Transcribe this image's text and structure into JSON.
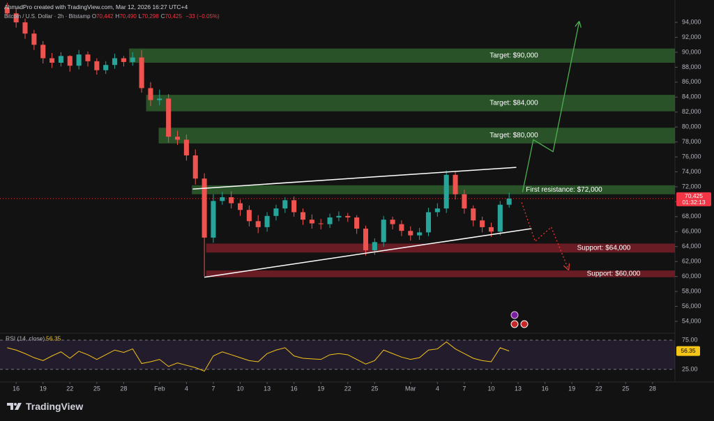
{
  "header": {
    "attribution": "AhmadPro created with TradingView.com, Mar 12, 2026 16:27 UTC+4",
    "symbol": "Bitcoin / U.S. Dollar · 2h · Bitstamp",
    "ohlc": [
      {
        "key": "O",
        "value": "70,442"
      },
      {
        "key": "H",
        "value": "70,490"
      },
      {
        "key": "L",
        "value": "70,298"
      },
      {
        "key": "C",
        "value": "70,425"
      }
    ],
    "change": "−33 (−0.05%)"
  },
  "chart_data": [
    {
      "type": "candlestick",
      "x": [
        15,
        16,
        17,
        18,
        19,
        20,
        21,
        22,
        23,
        24,
        25,
        26,
        27,
        28,
        29,
        30,
        31,
        32,
        33,
        34,
        35,
        36,
        37,
        38,
        39,
        40,
        41,
        42,
        43,
        44,
        45,
        46,
        47,
        48,
        49,
        50,
        51,
        52,
        53,
        54,
        55,
        56,
        57,
        58,
        59,
        60,
        61,
        62,
        63,
        64,
        65,
        66,
        67,
        68,
        69,
        70,
        71
      ],
      "open": [
        96000,
        95200,
        94000,
        92500,
        91000,
        89200,
        88600,
        89500,
        88200,
        89700,
        88800,
        87600,
        88300,
        89200,
        88700,
        89300,
        85200,
        83600,
        83800,
        78700,
        78300,
        76200,
        73100,
        65200,
        70100,
        70600,
        69800,
        68900,
        67400,
        66600,
        68100,
        69100,
        70200,
        68600,
        67600,
        67100,
        67000,
        67900,
        68100,
        67900,
        66400,
        63500,
        64600,
        67600,
        67000,
        66100,
        65500,
        65900,
        68600,
        69100,
        73600,
        71000,
        69100,
        67500,
        66600,
        66000,
        69600
      ],
      "high": [
        96600,
        95900,
        94500,
        93000,
        91500,
        89900,
        90000,
        89600,
        90300,
        90100,
        89200,
        88800,
        89800,
        89500,
        90000,
        90300,
        86000,
        85000,
        84400,
        79500,
        79000,
        77000,
        73800,
        71000,
        71300,
        71400,
        70300,
        69500,
        68200,
        68600,
        69600,
        70600,
        70700,
        69100,
        68300,
        67700,
        68400,
        68700,
        68500,
        68200,
        66800,
        65100,
        68100,
        68000,
        67500,
        66700,
        66500,
        69200,
        69800,
        74200,
        74000,
        71600,
        69500,
        68000,
        67200,
        70100,
        71200
      ],
      "low": [
        94600,
        93300,
        91800,
        90300,
        88500,
        87900,
        88100,
        87400,
        87700,
        88100,
        87000,
        87100,
        87800,
        88100,
        88200,
        84600,
        82800,
        82900,
        77900,
        77600,
        75500,
        72300,
        60000,
        64500,
        69600,
        69100,
        68100,
        66700,
        65800,
        66000,
        67500,
        68500,
        68000,
        66900,
        66400,
        66300,
        66500,
        67400,
        67300,
        65700,
        62800,
        62900,
        64000,
        66300,
        65400,
        64800,
        64900,
        65400,
        68000,
        68500,
        70300,
        68400,
        66700,
        65900,
        65300,
        65500,
        69200
      ],
      "close": [
        95200,
        94000,
        92500,
        91000,
        89200,
        88600,
        89500,
        88200,
        89700,
        88800,
        87600,
        88300,
        89200,
        88700,
        89300,
        85200,
        83600,
        83800,
        78700,
        78300,
        76200,
        73100,
        65200,
        70100,
        70600,
        69800,
        68900,
        67400,
        66600,
        68100,
        69100,
        70200,
        68600,
        67600,
        67100,
        67000,
        67900,
        68100,
        67900,
        66400,
        63500,
        64600,
        67600,
        67000,
        66100,
        65500,
        65900,
        68600,
        69100,
        73600,
        71000,
        69100,
        67500,
        66600,
        66000,
        69600,
        70425
      ],
      "colors": {
        "up": "#26a69a",
        "down": "#ef5350"
      },
      "xlim": [
        14.2,
        89.5
      ],
      "xticks": [
        16,
        19,
        22,
        25,
        28,
        {
          "value": 32,
          "label": "Feb"
        },
        {
          "value": 35,
          "label": "4"
        },
        {
          "value": 38,
          "label": "7"
        },
        {
          "value": 41,
          "label": "10"
        },
        {
          "value": 44,
          "label": "13"
        },
        {
          "value": 47,
          "label": "16"
        },
        {
          "value": 50,
          "label": "19"
        },
        {
          "value": 53,
          "label": "22"
        },
        {
          "value": 56,
          "label": "25"
        },
        {
          "value": 60,
          "label": "Mar"
        },
        {
          "value": 63,
          "label": "4"
        },
        {
          "value": 66,
          "label": "7"
        },
        {
          "value": 69,
          "label": "10"
        },
        {
          "value": 72,
          "label": "13"
        },
        {
          "value": 75,
          "label": "16"
        },
        {
          "value": 78,
          "label": "19"
        },
        {
          "value": 81,
          "label": "22"
        },
        {
          "value": 84,
          "label": "25"
        },
        {
          "value": 87,
          "label": "28"
        }
      ],
      "ylim": [
        52600,
        95500
      ],
      "yticks": [
        {
          "value": 54000,
          "label": "54,000"
        },
        {
          "value": 56000,
          "label": "56,000"
        },
        {
          "value": 58000,
          "label": "58,000"
        },
        {
          "value": 60000,
          "label": "60,000"
        },
        {
          "value": 62000,
          "label": "62,000"
        },
        {
          "value": 64000,
          "label": "64,000"
        },
        {
          "value": 66000,
          "label": "66,000"
        },
        {
          "value": 68000,
          "label": "68,000"
        },
        {
          "value": 70000,
          "label": "70,000"
        },
        {
          "value": 72000,
          "label": "72,000"
        },
        {
          "value": 74000,
          "label": "74,000"
        },
        {
          "value": 76000,
          "label": "76,000"
        },
        {
          "value": 78000,
          "label": "78,000"
        },
        {
          "value": 80000,
          "label": "80,000"
        },
        {
          "value": 82000,
          "label": "82,000"
        },
        {
          "value": 84000,
          "label": "84,000"
        },
        {
          "value": 86000,
          "label": "86,000"
        },
        {
          "value": 88000,
          "label": "88,000"
        },
        {
          "value": 90000,
          "label": "90,000"
        },
        {
          "value": 92000,
          "label": "92,000"
        },
        {
          "value": 94000,
          "label": "94,000"
        }
      ],
      "zones": [
        {
          "label": "Target: $90,000",
          "start": 28.6,
          "top": 90500,
          "bottom": 88600,
          "color": "#2e5e2e"
        },
        {
          "label": "Target: $84,000",
          "start": 30.5,
          "top": 84300,
          "bottom": 82100,
          "color": "#2e5e2e"
        },
        {
          "label": "Target: $80,000",
          "start": 31.9,
          "top": 79900,
          "bottom": 77800,
          "color": "#2e5e2e"
        },
        {
          "label": "First resistance: $72,000",
          "start": 35.6,
          "top": 72200,
          "bottom": 71000,
          "color": "#2e5e2e"
        },
        {
          "label": "Support: $64,000",
          "start": 37.2,
          "top": 64400,
          "bottom": 63200,
          "color": "#7a1f28"
        },
        {
          "label": "Support: $60,000",
          "start": 37.2,
          "top": 60800,
          "bottom": 59900,
          "color": "#7a1f28"
        }
      ],
      "trendlines": [
        {
          "x": [
            35.7,
            71.8
          ],
          "y": [
            71700,
            74600
          ],
          "color": "#ffffff"
        },
        {
          "x": [
            37.0,
            73.5
          ],
          "y": [
            59900,
            66400
          ],
          "color": "#ffffff"
        }
      ],
      "projections": [
        {
          "x": [
            72.5,
            73.7,
            75.9,
            78.8
          ],
          "y": [
            71300,
            78300,
            76700,
            94000
          ],
          "color": "#4caf50",
          "style": "solid"
        },
        {
          "x": [
            72.4,
            73.9,
            75.7,
            77.6
          ],
          "y": [
            69900,
            64700,
            66600,
            61000
          ],
          "color": "#e53935",
          "style": "dotted"
        }
      ],
      "last_price": {
        "value": 70425,
        "label": "70,425",
        "timer": "01:32:13",
        "color": "#f23645"
      }
    },
    {
      "type": "line",
      "title": "RSI (14, close)",
      "x": [
        15,
        16,
        17,
        18,
        19,
        20,
        21,
        22,
        23,
        24,
        25,
        26,
        27,
        28,
        29,
        30,
        31,
        32,
        33,
        34,
        35,
        36,
        37,
        38,
        39,
        40,
        41,
        42,
        43,
        44,
        45,
        46,
        47,
        48,
        49,
        50,
        51,
        52,
        53,
        54,
        55,
        56,
        57,
        58,
        59,
        60,
        61,
        62,
        63,
        64,
        65,
        66,
        67,
        68,
        69,
        70,
        71
      ],
      "values": [
        62,
        58,
        52,
        45,
        40,
        48,
        55,
        44,
        56,
        50,
        42,
        50,
        58,
        54,
        60,
        35,
        38,
        42,
        30,
        36,
        32,
        28,
        22,
        48,
        55,
        50,
        45,
        40,
        38,
        52,
        58,
        62,
        48,
        44,
        43,
        42,
        50,
        52,
        50,
        42,
        34,
        40,
        58,
        52,
        46,
        42,
        45,
        58,
        60,
        72,
        60,
        52,
        44,
        40,
        38,
        62,
        56.35
      ],
      "current": 56.35,
      "color": "#f5c518",
      "band_color": "#7e57c2",
      "ylim": [
        13,
        84.5
      ],
      "yticks": [
        {
          "value": 75,
          "label": "75.00"
        },
        {
          "value": 25,
          "label": "25.00"
        }
      ]
    }
  ],
  "footer": {
    "brand": "TradingView"
  }
}
